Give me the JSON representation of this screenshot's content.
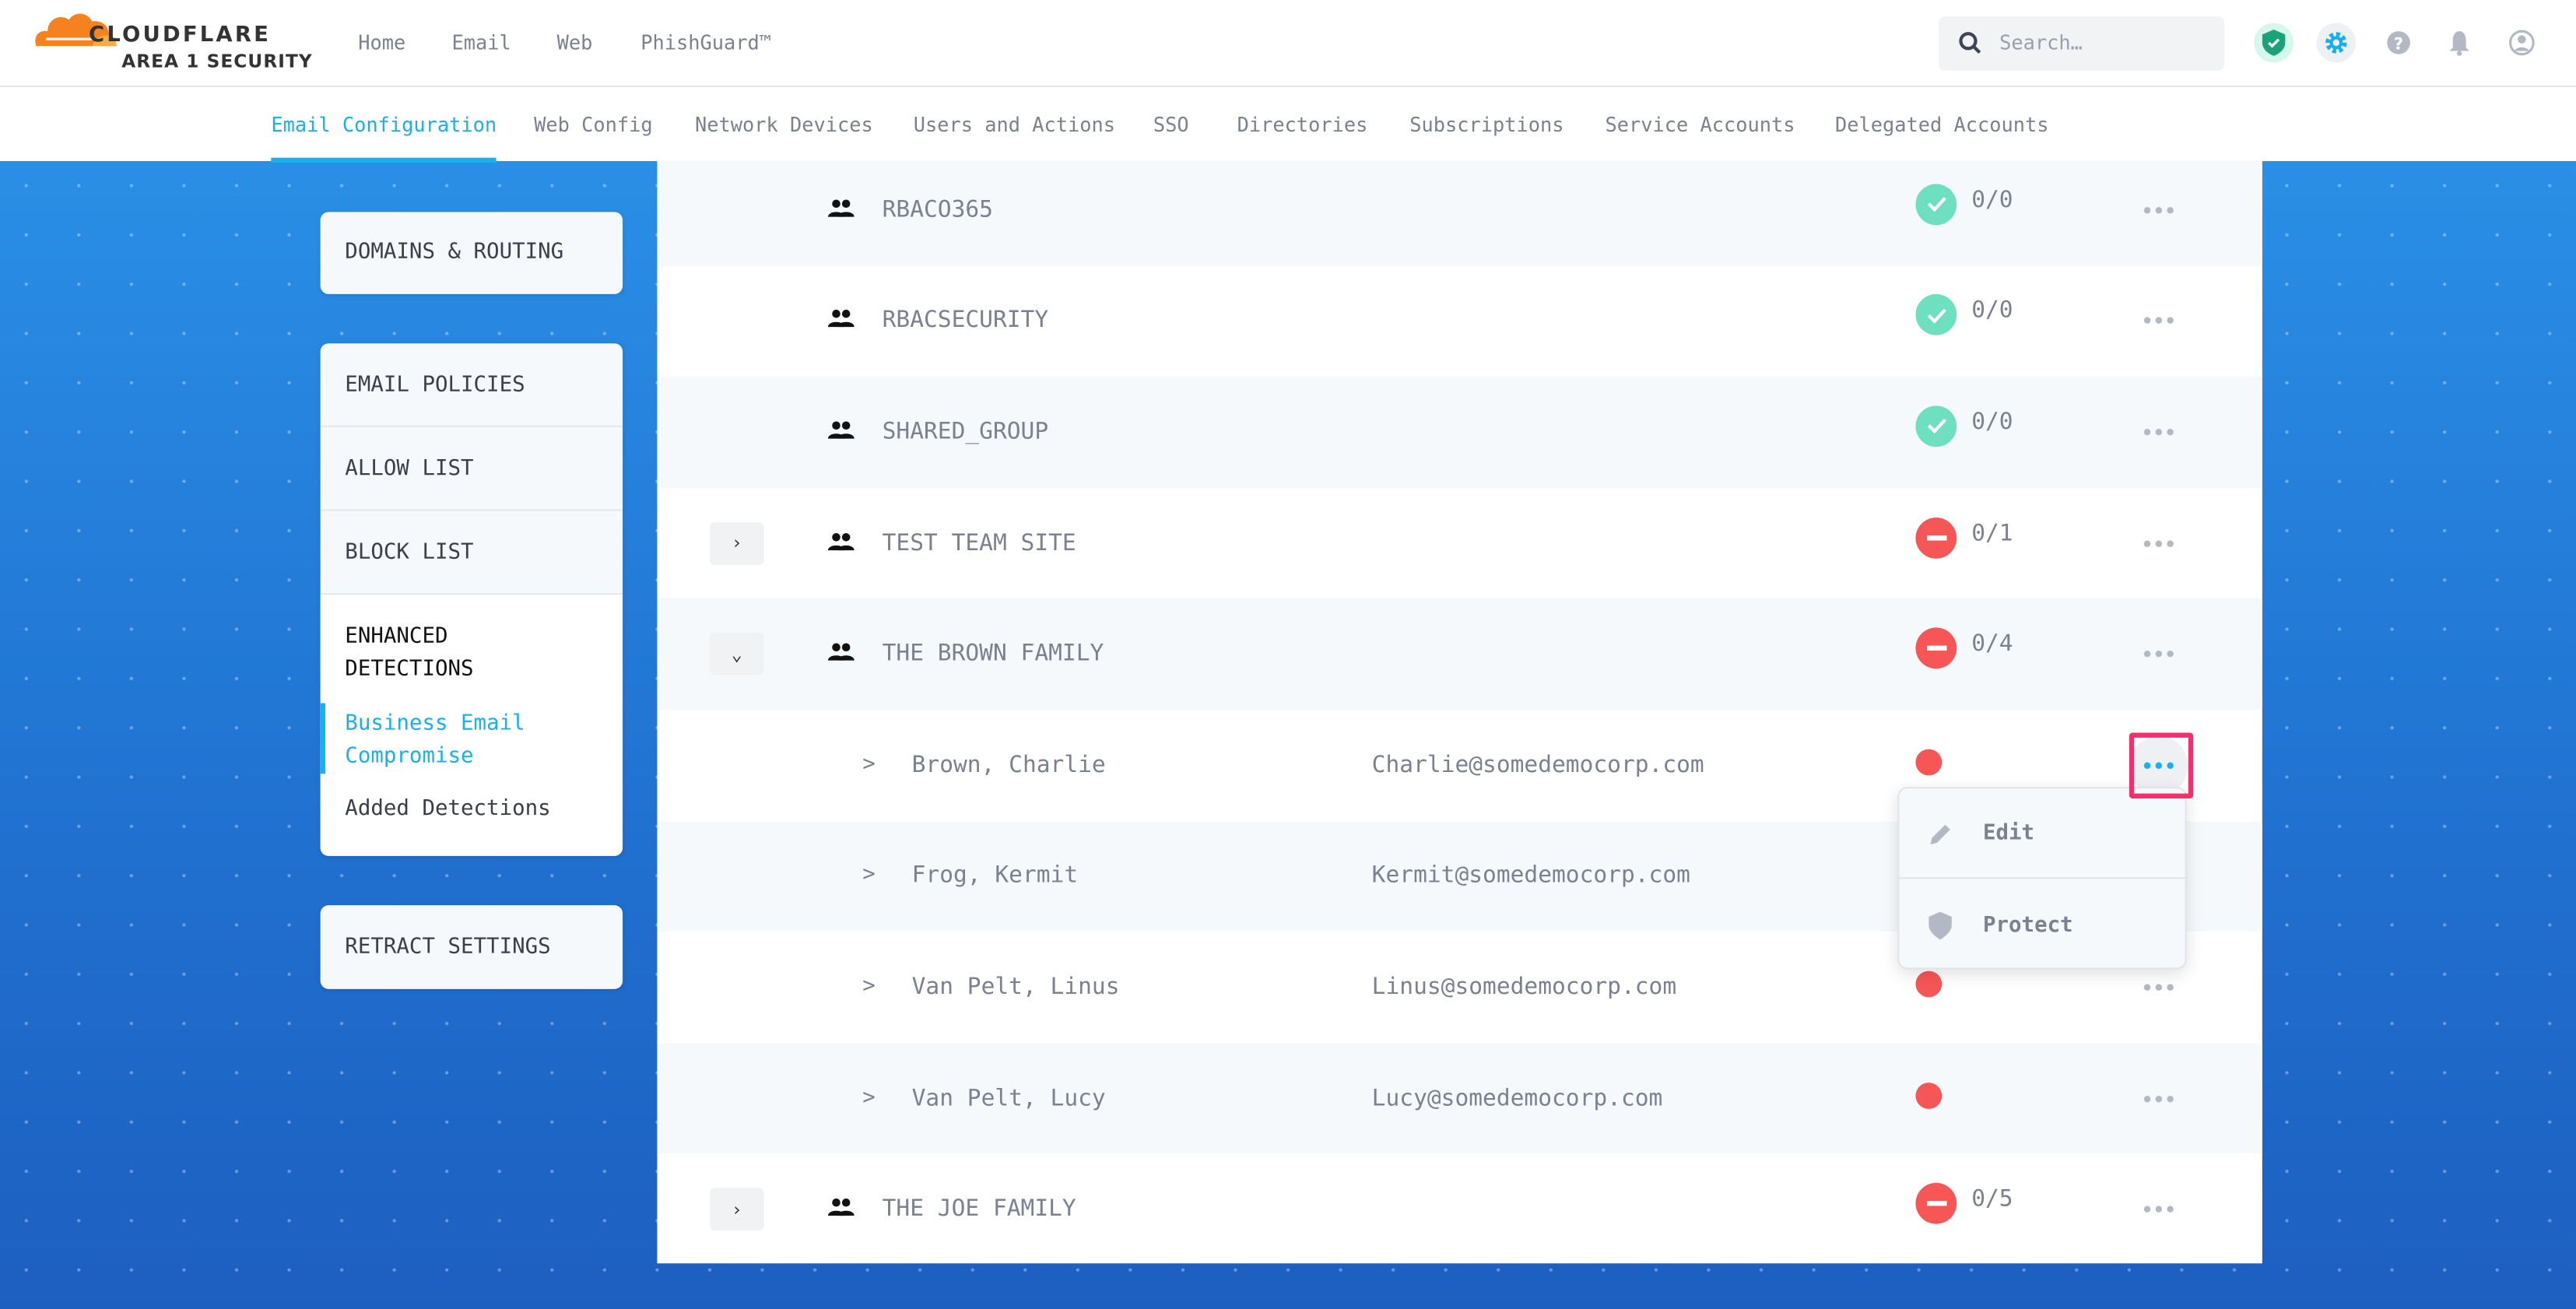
{
  "header": {
    "brand": "CLOUDFLARE",
    "product": "AREA 1 SECURITY",
    "nav": [
      "Home",
      "Email",
      "Web",
      "PhishGuard™"
    ],
    "search_placeholder": "Search…",
    "icons": [
      "shield-check-icon",
      "gear-icon",
      "help-icon",
      "bell-icon",
      "user-icon"
    ]
  },
  "tabs": [
    "Email Configuration",
    "Web Config",
    "Network Devices",
    "Users and Actions",
    "SSO",
    "Directories",
    "Subscriptions",
    "Service Accounts",
    "Delegated Accounts"
  ],
  "active_tab": "Email Configuration",
  "sidebar": {
    "domains": "DOMAINS & ROUTING",
    "policies": "EMAIL POLICIES",
    "allow": "ALLOW LIST",
    "block": "BLOCK LIST",
    "enhanced": "ENHANCED DETECTIONS",
    "bec": "Business Email Compromise",
    "added": "Added Detections",
    "retract": "RETRACT SETTINGS"
  },
  "rows": [
    {
      "type": "group",
      "name": "RBACO365",
      "status": "ok",
      "count": "0/0"
    },
    {
      "type": "group",
      "name": "RBACSECURITY",
      "status": "ok",
      "count": "0/0"
    },
    {
      "type": "group",
      "name": "SHARED_GROUP",
      "status": "ok",
      "count": "0/0"
    },
    {
      "type": "group",
      "name": "TEST TEAM SITE",
      "status": "blocked",
      "count": "0/1",
      "expand": "collapsed"
    },
    {
      "type": "group",
      "name": "THE BROWN FAMILY",
      "status": "blocked",
      "count": "0/4",
      "expand": "expanded"
    },
    {
      "type": "user",
      "name": "Brown, Charlie",
      "email": "Charlie@somedemocorp.com",
      "status": "unprotected",
      "menu_open": true
    },
    {
      "type": "user",
      "name": "Frog, Kermit",
      "email": "Kermit@somedemocorp.com",
      "status": "unprotected"
    },
    {
      "type": "user",
      "name": "Van Pelt, Linus",
      "email": "Linus@somedemocorp.com",
      "status": "unprotected"
    },
    {
      "type": "user",
      "name": "Van Pelt, Lucy",
      "email": "Lucy@somedemocorp.com",
      "status": "unprotected"
    },
    {
      "type": "group",
      "name": "THE JOE FAMILY",
      "status": "blocked",
      "count": "0/5",
      "expand": "collapsed"
    }
  ],
  "user_arrow": ">",
  "menu": {
    "edit": "Edit",
    "protect": "Protect"
  },
  "colors": {
    "accent": "#19b0ee",
    "ok": "#6ee0c0",
    "blocked": "#f75656",
    "highlight": "#f2306e"
  }
}
